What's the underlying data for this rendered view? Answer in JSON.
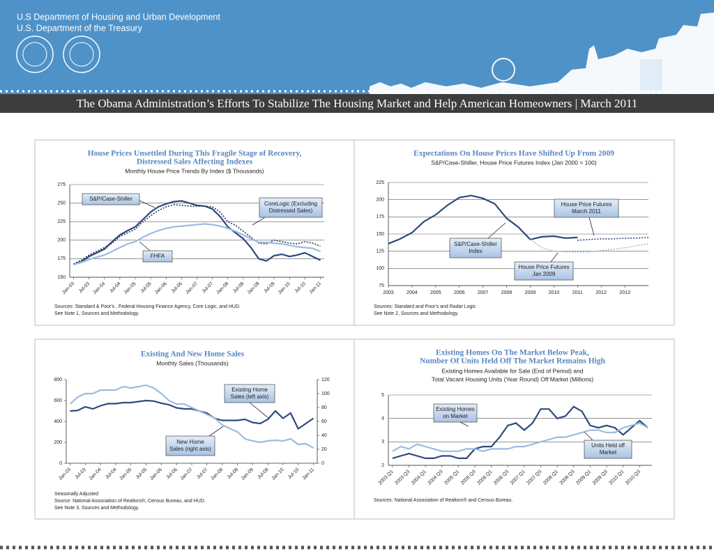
{
  "header": {
    "agencies": [
      "U.S Department of Housing and Urban Development",
      "U.S. Department of the Treasury"
    ],
    "banner": "The Obama Administration’s Efforts To Stabilize The Housing Market and Help American Homeowners | March 2011"
  },
  "chart_data": [
    {
      "type": "line",
      "title": [
        "House Prices Unsettled During This Fragile Stage of Recovery,",
        "Distressed Sales Affecting Indexes"
      ],
      "subtitle": [
        "Monthly House Price Trends By Index ($ Thousands)"
      ],
      "categories": [
        "Jan-03",
        null,
        "Jul-03",
        null,
        "Jan-04",
        null,
        "Jul-04",
        null,
        "Jan-05",
        null,
        "Jul-05",
        null,
        "Jan-06",
        null,
        "Jul-06",
        null,
        "Jan-07",
        null,
        "Jul-07",
        null,
        "Jan-08",
        null,
        "Jul-08",
        null,
        "Jan-09",
        null,
        "Jul-09",
        null,
        "Jan-10",
        null,
        "Jul-10",
        null,
        "Jan-11"
      ],
      "series": [
        {
          "name": "S&P/Case-Shiller",
          "color": "#2c4a7a",
          "line_style": "solid",
          "values": [
            167,
            171,
            178,
            183,
            188,
            198,
            207,
            213,
            218,
            228,
            238,
            245,
            249,
            252,
            253,
            250,
            247,
            246,
            242,
            232,
            218,
            210,
            202,
            190,
            175,
            172,
            179,
            181,
            178,
            180,
            183,
            178,
            173
          ]
        },
        {
          "name": "CoreLogic (Excluding Distressed Sales)",
          "color": "#1f2f4f",
          "line_style": "dotted",
          "values": [
            168,
            173,
            180,
            185,
            190,
            196,
            205,
            210,
            215,
            225,
            233,
            240,
            245,
            248,
            247,
            246,
            246,
            246,
            245,
            238,
            225,
            220,
            212,
            204,
            196,
            195,
            200,
            198,
            196,
            195,
            198,
            196,
            192
          ]
        },
        {
          "name": "FHFA",
          "color": "#9bbbe0",
          "line_style": "solid",
          "values": [
            167,
            170,
            174,
            177,
            180,
            185,
            190,
            195,
            198,
            204,
            209,
            213,
            216,
            218,
            219,
            220,
            221,
            222,
            221,
            219,
            216,
            212,
            207,
            202,
            197,
            197,
            196,
            195,
            193,
            191,
            190,
            189,
            185
          ]
        }
      ],
      "annotations": [
        {
          "lines": [
            "S&P/Case-Shiller"
          ]
        },
        {
          "lines": [
            "CoreLogic (Excluding",
            "Distressed Sales)"
          ]
        },
        {
          "lines": [
            "FHFA"
          ]
        }
      ],
      "ylim": [
        150,
        275
      ],
      "yticks": [
        150,
        175,
        200,
        225,
        250,
        275
      ],
      "grid": true,
      "notes": [
        "Sources:  Standard & Poor's , Federal Housing Finance Agency, Core Logic, and HUD.",
        "See Note 1, Sources and Methodology."
      ]
    },
    {
      "type": "line",
      "title": [
        "Expectations On House Prices Have Shifted Up From 2009"
      ],
      "subtitle": [
        "S&P/Case-Shiller, House Price Futures Index (Jan 2000 = 100)"
      ],
      "x": [
        2003,
        2003.5,
        2004,
        2004.5,
        2005,
        2005.5,
        2006,
        2006.5,
        2007,
        2007.5,
        2008,
        2008.5,
        2009,
        2009.5,
        2010,
        2010.5,
        2011,
        2011.5,
        2012,
        2012.5,
        2013,
        2013.5,
        2014
      ],
      "series": [
        {
          "name": "S&P/Case-Shiller Index",
          "color": "#2c4a7a",
          "line_style": "solid",
          "values": [
            136,
            143,
            152,
            168,
            178,
            192,
            203,
            206,
            202,
            194,
            173,
            160,
            142,
            146,
            147,
            144,
            145,
            null,
            null,
            null,
            null,
            null,
            null
          ]
        },
        {
          "name": "House Price Futures March 2011",
          "color": "#2c4a7a",
          "line_style": "dotted",
          "values": [
            null,
            null,
            null,
            null,
            null,
            null,
            null,
            null,
            null,
            null,
            null,
            null,
            null,
            null,
            null,
            null,
            141,
            142,
            143,
            143,
            144,
            144,
            145
          ]
        },
        {
          "name": "House Price Futures Jan 2009",
          "color": "#9bbbe0",
          "line_style": "dotted",
          "values": [
            null,
            null,
            null,
            null,
            null,
            null,
            null,
            null,
            null,
            null,
            null,
            null,
            142,
            130,
            125,
            124,
            124,
            124,
            126,
            128,
            130,
            133,
            136
          ]
        }
      ],
      "annotations": [
        {
          "lines": [
            "House Price Futures",
            "March 2011"
          ]
        },
        {
          "lines": [
            "S&P/Case-Shiller",
            "Index"
          ]
        },
        {
          "lines": [
            "House Price Futures",
            "Jan 2009"
          ]
        }
      ],
      "xlim": [
        2003,
        2014
      ],
      "xticks": [
        2003,
        2004,
        2005,
        2006,
        2007,
        2008,
        2009,
        2010,
        2011,
        2012,
        2013
      ],
      "ylim": [
        75,
        225
      ],
      "yticks": [
        75,
        100,
        125,
        150,
        175,
        200,
        225
      ],
      "grid": true,
      "notes": [
        "Sources:  Standard and Poor's and Radar Logic",
        "See Note 2, Sources and Methodology."
      ]
    },
    {
      "type": "line",
      "title": [
        "Existing And New Home Sales"
      ],
      "subtitle": [
        "Monthly Sales (Thousands)"
      ],
      "categories": [
        "Jan-03",
        null,
        "Jul-03",
        null,
        "Jan-04",
        null,
        "Jul-04",
        null,
        "Jan-05",
        null,
        "Jul-05",
        null,
        "Jan-06",
        null,
        "Jul-06",
        null,
        "Jan-07",
        null,
        "Jul-07",
        null,
        "Jan-08",
        null,
        "Jul-08",
        null,
        "Jan-09",
        null,
        "Jul-09",
        null,
        "Jan-10",
        null,
        "Jul-10",
        null,
        "Jan-11"
      ],
      "series": [
        {
          "name": "Existing Home Sales (left axis)",
          "color": "#2c4a7a",
          "line_style": "solid",
          "values": [
            500,
            505,
            540,
            520,
            550,
            570,
            570,
            580,
            580,
            590,
            600,
            595,
            575,
            560,
            530,
            520,
            520,
            500,
            480,
            430,
            410,
            410,
            410,
            420,
            390,
            380,
            420,
            500,
            430,
            480,
            330,
            380,
            430
          ]
        },
        {
          "name": "New Home Sales (right axis)",
          "color": "#9bbbe0",
          "line_style": "solid",
          "axis": "y2",
          "values": [
            85,
            95,
            100,
            100,
            105,
            105,
            105,
            110,
            108,
            110,
            112,
            108,
            100,
            90,
            85,
            85,
            80,
            75,
            70,
            65,
            55,
            50,
            45,
            35,
            32,
            30,
            32,
            33,
            32,
            35,
            27,
            28,
            22
          ]
        }
      ],
      "annotations": [
        {
          "lines": [
            "Existing Home",
            "Sales (left axis)"
          ]
        },
        {
          "lines": [
            "New Home",
            "Sales (right axis)"
          ]
        }
      ],
      "ylim": [
        0,
        800
      ],
      "yticks": [
        0,
        200,
        400,
        600,
        800
      ],
      "y2lim": [
        0,
        120
      ],
      "y2ticks": [
        0,
        20,
        40,
        60,
        80,
        100,
        120
      ],
      "grid": false,
      "notes": [
        "Seasonally Adjusted",
        "Source:  National Association of Realtors®,  Census Bureau, and HUD.",
        "See Note 3, Sources and Methodology."
      ]
    },
    {
      "type": "line",
      "title": [
        "Existing Homes On The Market Below Peak,",
        "Number Of Units Held Off The Market Remains High"
      ],
      "subtitle": [
        "Existing Homes Available for Sale (End of Period) and",
        "Total Vacant Housing Units (Year Round) Off Market (Millions)"
      ],
      "categories": [
        "2003 Q1",
        null,
        "2003 Q3",
        null,
        "2004 Q1",
        null,
        "2004 Q3",
        null,
        "2005 Q1",
        null,
        "2005 Q3",
        null,
        "2006 Q1",
        null,
        "2006 Q3",
        null,
        "2007 Q1",
        null,
        "2007 Q3",
        null,
        "2008 Q1",
        null,
        "2008 Q3",
        null,
        "2009 Q1",
        null,
        "2009 Q3",
        null,
        "2010 Q1",
        null,
        "2010 Q3",
        null
      ],
      "series": [
        {
          "name": "Existing Homes on Market",
          "color": "#2c4a7a",
          "line_style": "solid",
          "values": [
            2.3,
            2.4,
            2.5,
            2.4,
            2.3,
            2.3,
            2.4,
            2.4,
            2.3,
            2.3,
            2.7,
            2.8,
            2.8,
            3.2,
            3.7,
            3.8,
            3.5,
            3.8,
            4.4,
            4.4,
            4.0,
            4.1,
            4.5,
            4.3,
            3.7,
            3.6,
            3.7,
            3.6,
            3.3,
            3.6,
            3.9,
            3.6
          ]
        },
        {
          "name": "Units Held off Market",
          "color": "#9bbbe0",
          "line_style": "solid",
          "values": [
            2.6,
            2.8,
            2.7,
            2.9,
            2.8,
            2.7,
            2.6,
            2.6,
            2.6,
            2.7,
            2.7,
            2.6,
            2.7,
            2.7,
            2.7,
            2.8,
            2.8,
            2.9,
            3.0,
            3.1,
            3.2,
            3.2,
            3.3,
            3.4,
            3.5,
            3.5,
            3.4,
            3.4,
            3.6,
            3.7,
            3.8,
            3.6
          ]
        }
      ],
      "annotations": [
        {
          "lines": [
            "Existing Homes",
            "on Market"
          ]
        },
        {
          "lines": [
            "Units Held off",
            "Market"
          ]
        }
      ],
      "ylim": [
        2,
        5
      ],
      "yticks": [
        2,
        3,
        4,
        5
      ],
      "grid": true,
      "notes": [
        "Sources: National Association of Realtors® and Census Bureau."
      ]
    }
  ]
}
